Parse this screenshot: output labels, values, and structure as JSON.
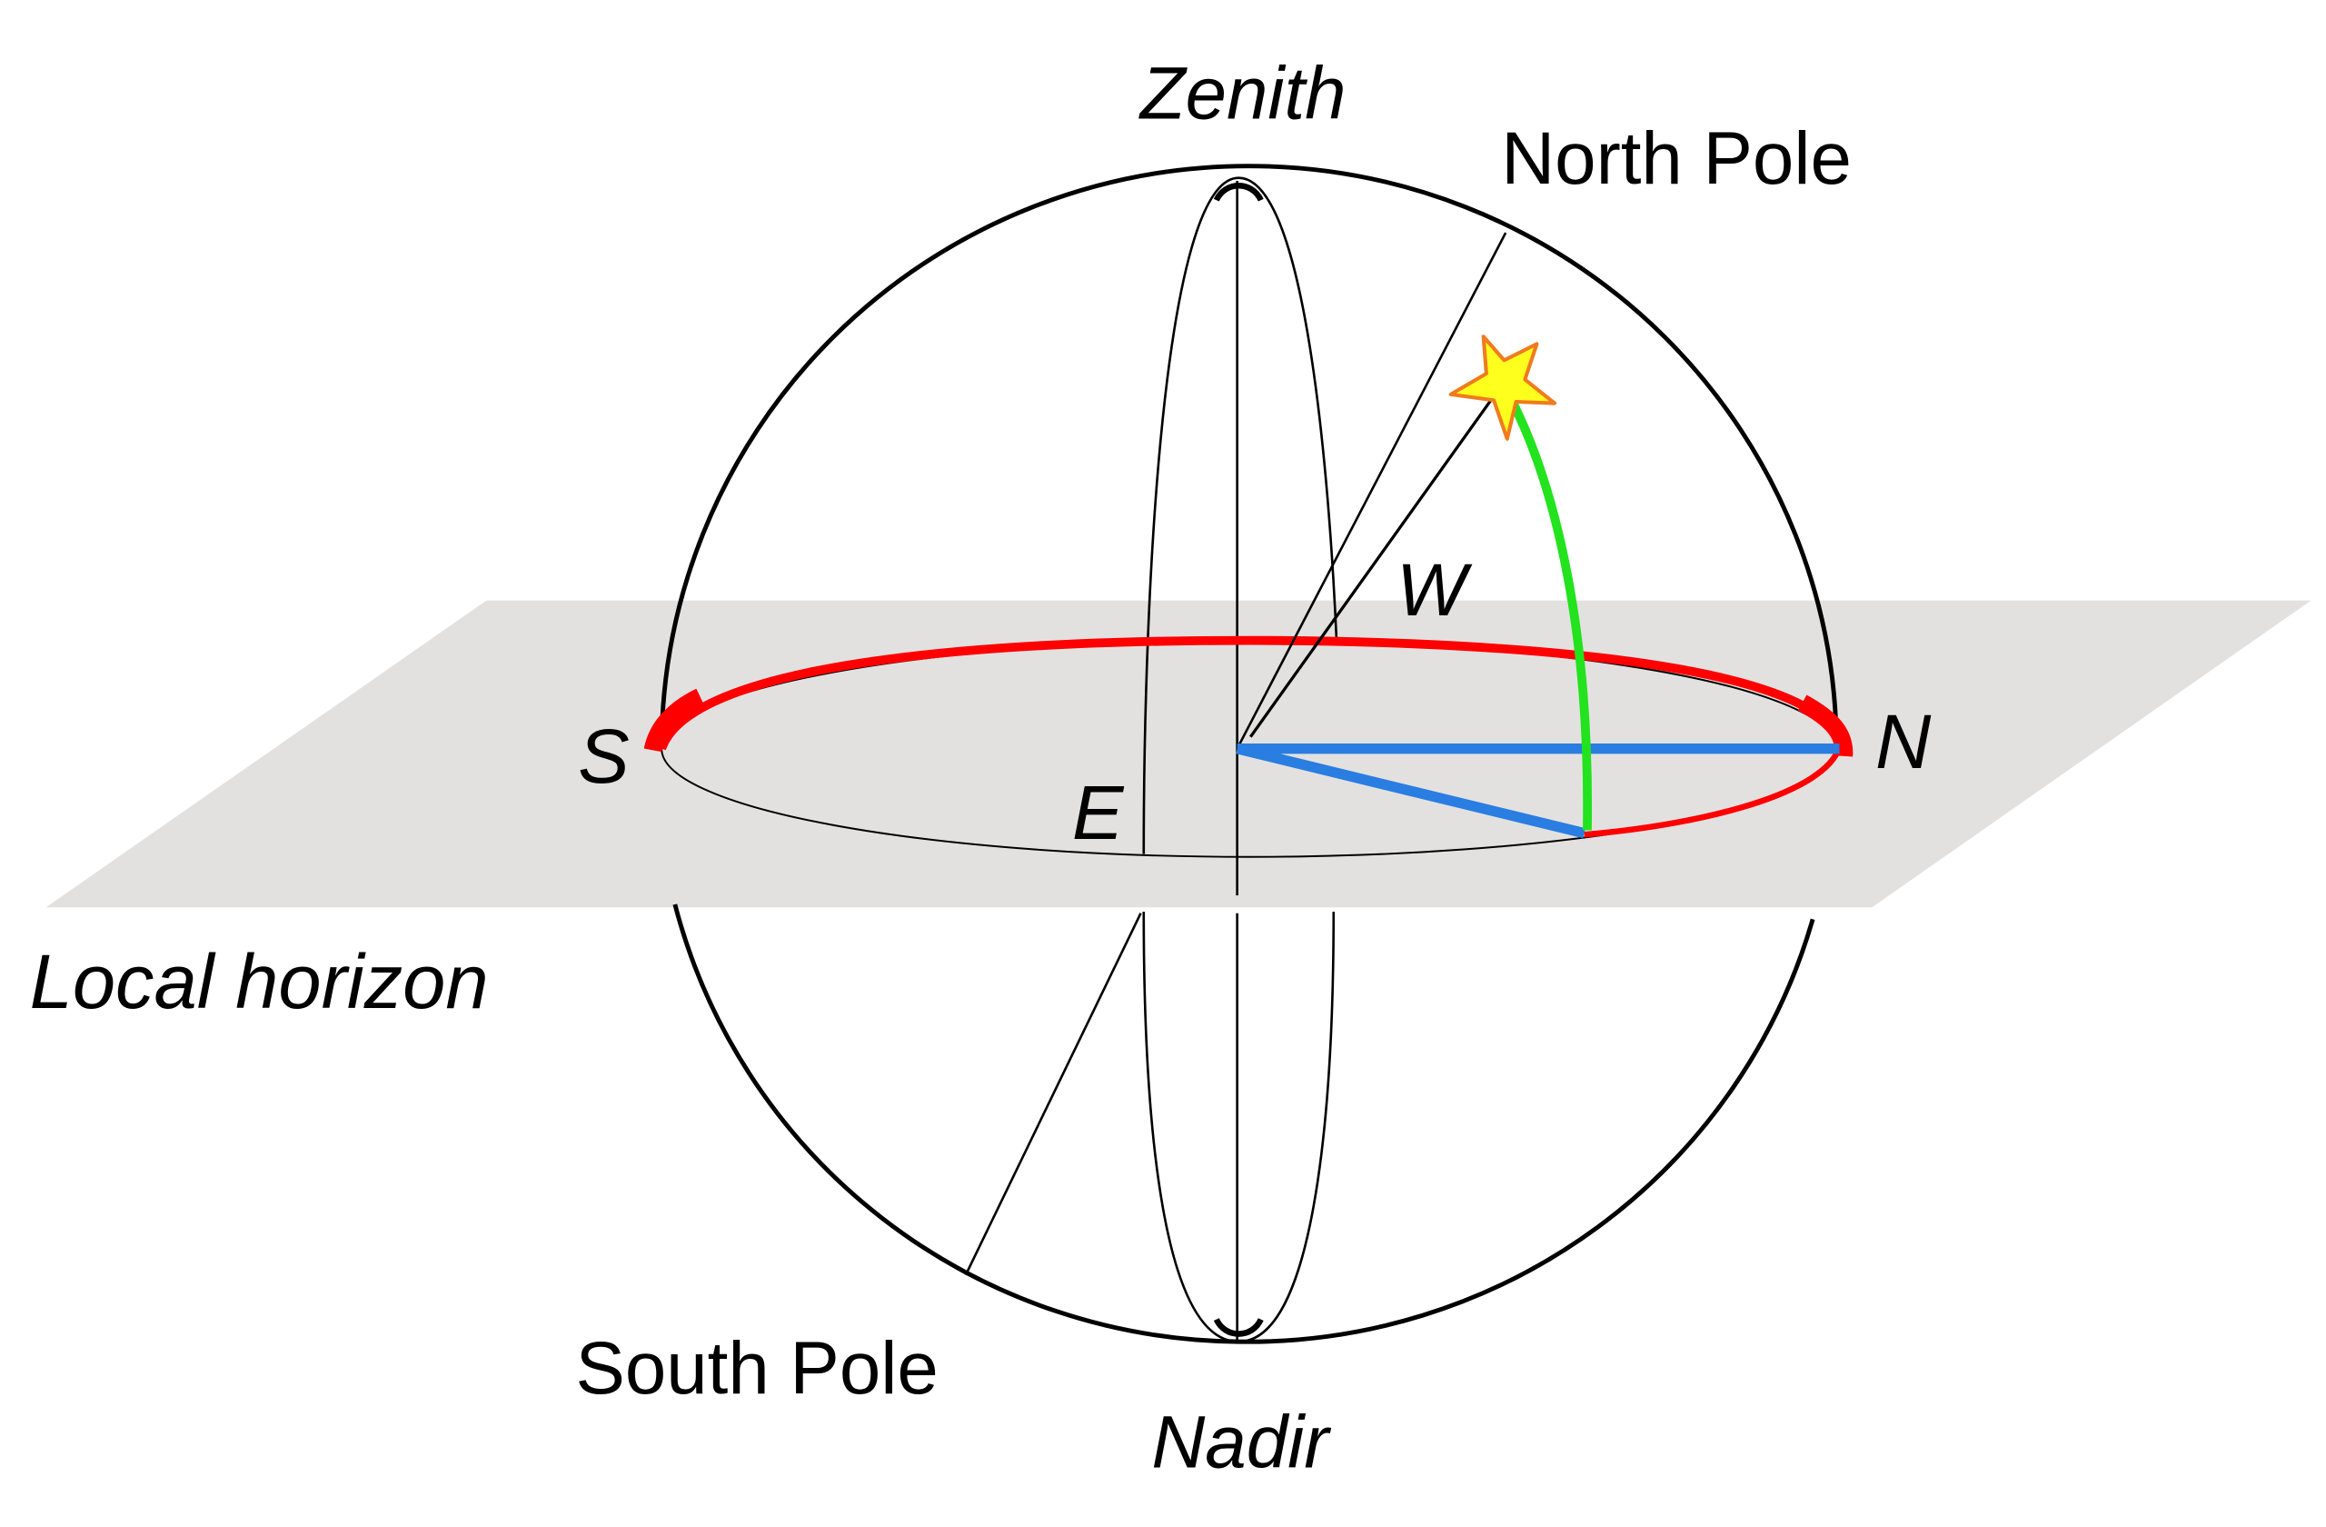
{
  "labels": {
    "zenith": "Zenith",
    "north_pole": "North Pole",
    "w": "W",
    "s": "S",
    "n": "N",
    "e": "E",
    "local_horizon": "Local horizon",
    "south_pole": "South Pole",
    "nadir": "Nadir"
  },
  "colors": {
    "plane": "#e3e1e0",
    "sphere": "#000000",
    "horizon_arc": "#ff0000",
    "azimuth_line": "#2a7de1",
    "altitude_arc": "#22e31e",
    "star_fill": "#ffff1e",
    "star_stroke": "#f07b1e"
  },
  "icons": {
    "star": "star-icon"
  }
}
